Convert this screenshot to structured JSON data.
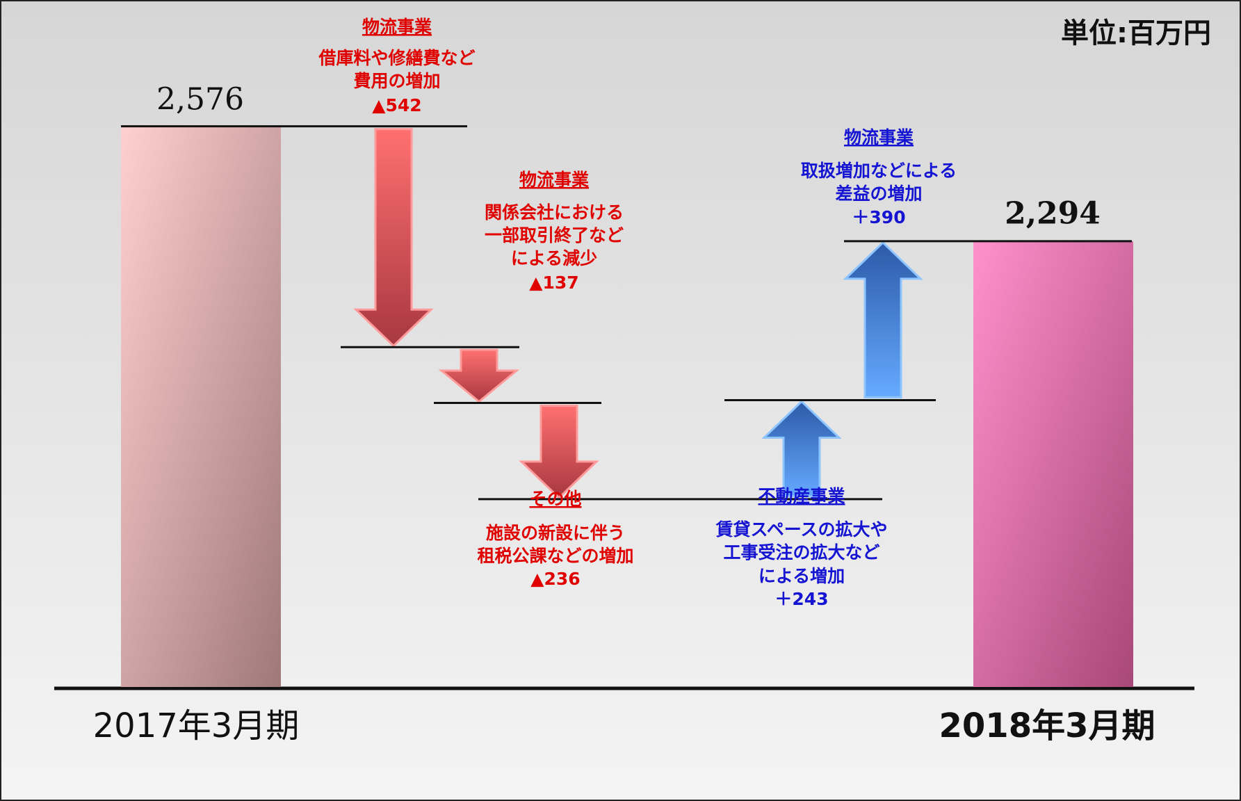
{
  "chart_data": {
    "type": "waterfall",
    "unit_label": "単位:百万円",
    "start": {
      "label": "2017年3月期",
      "value": 2576,
      "value_label": "2,576",
      "color": "#e8aeae"
    },
    "end": {
      "label": "2018年3月期",
      "value": 2294,
      "value_label": "2,294",
      "color": "#e878b0"
    },
    "decrease_color": "#e00000",
    "increase_color": "#1414d2",
    "steps": [
      {
        "name": "物流事業",
        "description": [
          "借庫料や修繕費など",
          "費用の増加"
        ],
        "value": -542,
        "value_label": "▲542"
      },
      {
        "name": "物流事業",
        "description": [
          "関係会社における",
          "一部取引終了など",
          "による減少"
        ],
        "value": -137,
        "value_label": "▲137"
      },
      {
        "name": "その他",
        "description": [
          "施設の新設に伴う",
          "租税公課などの増加"
        ],
        "value": -236,
        "value_label": "▲236"
      },
      {
        "name": "不動産事業",
        "description": [
          "賃貸スペースの拡大や",
          "工事受注の拡大など",
          "による増加"
        ],
        "value": 243,
        "value_label": "＋243"
      },
      {
        "name": "物流事業",
        "description": [
          "取扱増加などによる",
          "差益の増加"
        ],
        "value": 390,
        "value_label": "＋390"
      }
    ],
    "ylim": [
      1200,
      2700
    ]
  }
}
